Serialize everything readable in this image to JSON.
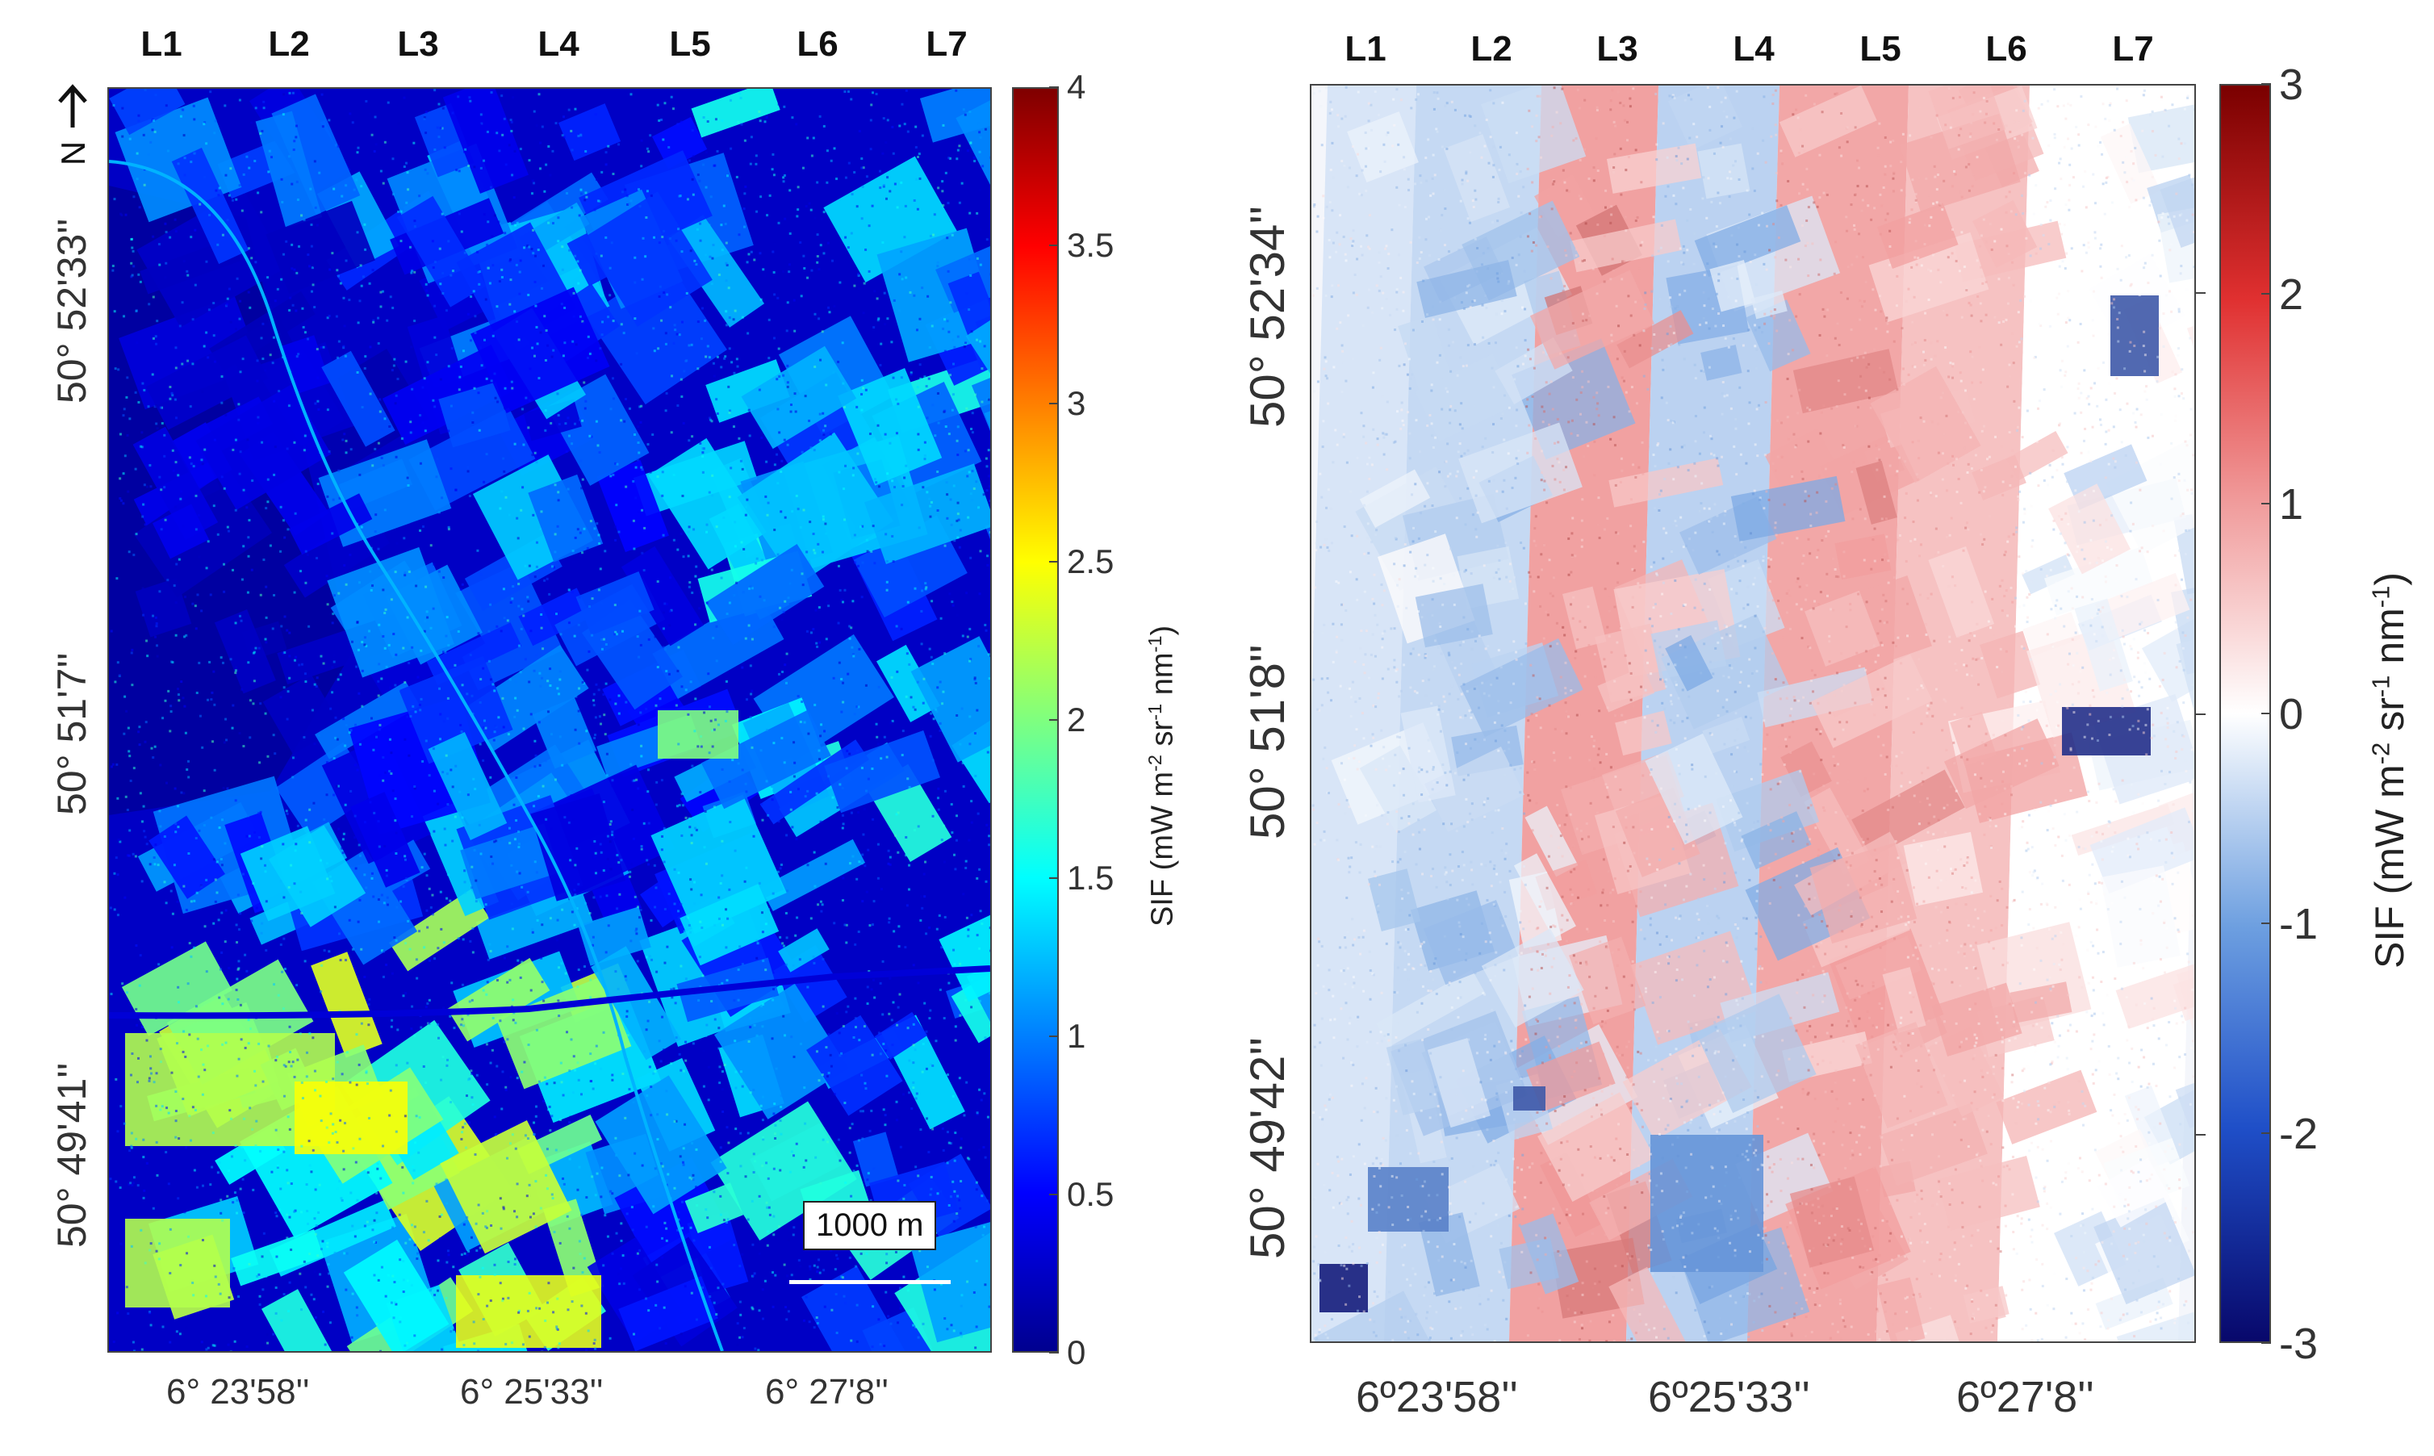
{
  "chart_data": [
    {
      "type": "heatmap",
      "title": "",
      "colormap": "jet",
      "strips": [
        "L1",
        "L2",
        "L3",
        "L4",
        "L5",
        "L6",
        "L7"
      ],
      "xticks": [
        "6° 23'58''",
        "6° 25'33''",
        "6° 27'8''"
      ],
      "yticks": [
        "50° 52'33''",
        "50° 51'7''",
        "50° 49'41''"
      ],
      "colorbar": {
        "label": "SIF (mW m",
        "label_units": [
          "-2",
          " sr",
          "-1",
          " nm",
          "-1",
          ")"
        ],
        "range": [
          0,
          4
        ],
        "ticks": [
          "0",
          "0.5",
          "1",
          "1.5",
          "2",
          "2.5",
          "3",
          "3.5",
          "4"
        ]
      },
      "north_label": "N",
      "scale_bar": "1000 m"
    },
    {
      "type": "heatmap",
      "title": "",
      "colormap": "blue-white-red",
      "strips": [
        "L1",
        "L2",
        "L3",
        "L4",
        "L5",
        "L6",
        "L7"
      ],
      "strip_bias": [
        -0.4,
        -0.6,
        1.4,
        -0.7,
        1.3,
        0.9,
        0.0
      ],
      "xticks": [
        "6º23'58''",
        "6º25'33''",
        "6º27'8''"
      ],
      "yticks": [
        "50° 52'34''",
        "50° 51'8''",
        "50° 49'42''"
      ],
      "colorbar": {
        "label": "SIF (mW m",
        "label_units": [
          "-2",
          " sr",
          "-1",
          " nm",
          "-1",
          ")"
        ],
        "range": [
          -3,
          3
        ],
        "ticks": [
          "-3",
          "-2",
          "-1",
          "0",
          "1",
          "2",
          "3"
        ]
      }
    }
  ]
}
